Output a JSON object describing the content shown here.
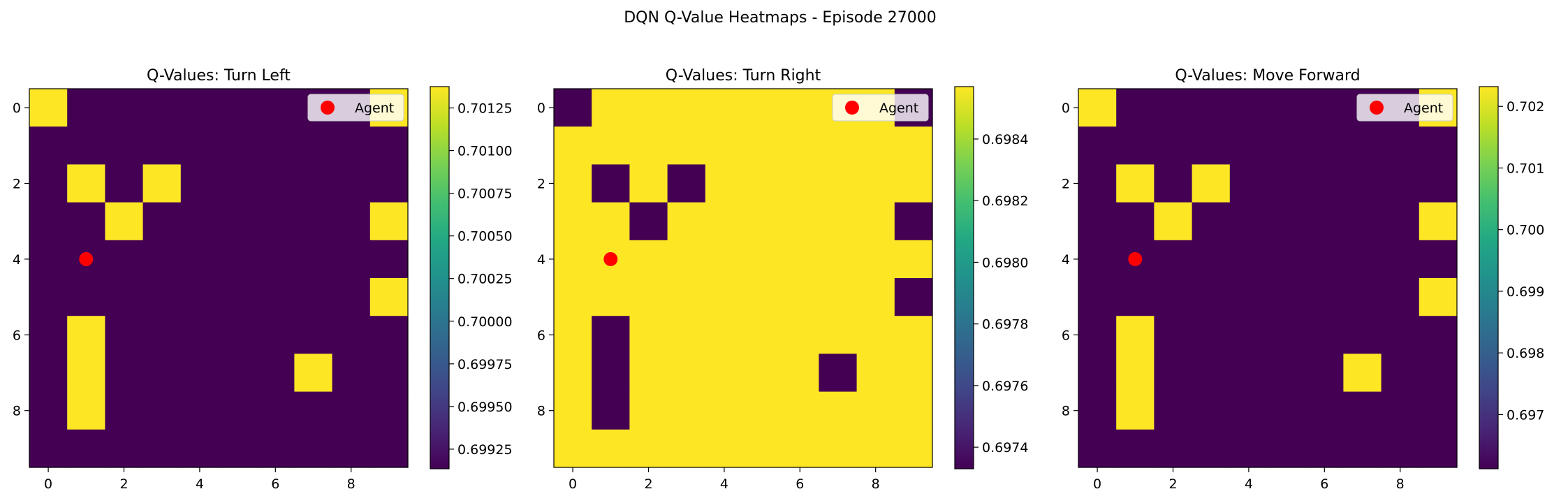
{
  "title": "DQN Q-Value Heatmaps - Episode 27000",
  "colors": {
    "low": "#440154",
    "high": "#fde725",
    "agent": "#ff0000",
    "colormap": "viridis"
  },
  "chart_data": [
    {
      "type": "heatmap",
      "title": "Q-Values: Turn Left",
      "xticks": [
        0,
        2,
        4,
        6,
        8
      ],
      "yticks": [
        0,
        2,
        4,
        6,
        8
      ],
      "colorbar": {
        "vmin": 0.699135,
        "vmax": 0.701375,
        "ticks": [
          "0.69925",
          "0.69950",
          "0.69975",
          "0.70000",
          "0.70025",
          "0.70050",
          "0.70075",
          "0.70100",
          "0.70125"
        ]
      },
      "legend": {
        "label": "Agent",
        "loc": "upper right"
      },
      "agent": {
        "x": 1,
        "y": 4
      },
      "low_value": 0.69914,
      "high_value": 0.70137,
      "grid": [
        [
          1,
          0,
          0,
          0,
          0,
          0,
          0,
          0,
          0,
          1
        ],
        [
          0,
          0,
          0,
          0,
          0,
          0,
          0,
          0,
          0,
          0
        ],
        [
          0,
          1,
          0,
          1,
          0,
          0,
          0,
          0,
          0,
          0
        ],
        [
          0,
          0,
          1,
          0,
          0,
          0,
          0,
          0,
          0,
          1
        ],
        [
          0,
          0,
          0,
          0,
          0,
          0,
          0,
          0,
          0,
          0
        ],
        [
          0,
          0,
          0,
          0,
          0,
          0,
          0,
          0,
          0,
          1
        ],
        [
          0,
          1,
          0,
          0,
          0,
          0,
          0,
          0,
          0,
          0
        ],
        [
          0,
          1,
          0,
          0,
          0,
          0,
          0,
          1,
          0,
          0
        ],
        [
          0,
          1,
          0,
          0,
          0,
          0,
          0,
          0,
          0,
          0
        ],
        [
          0,
          0,
          0,
          0,
          0,
          0,
          0,
          0,
          0,
          0
        ]
      ]
    },
    {
      "type": "heatmap",
      "title": "Q-Values: Turn Right",
      "xticks": [
        0,
        2,
        4,
        6,
        8
      ],
      "yticks": [
        0,
        2,
        4,
        6,
        8
      ],
      "colorbar": {
        "vmin": 0.69733,
        "vmax": 0.69857,
        "ticks": [
          "0.6974",
          "0.6976",
          "0.6978",
          "0.6980",
          "0.6982",
          "0.6984"
        ]
      },
      "legend": {
        "label": "Agent",
        "loc": "upper right"
      },
      "agent": {
        "x": 1,
        "y": 4
      },
      "low_value": 0.69733,
      "high_value": 0.69857,
      "grid": [
        [
          0,
          1,
          1,
          1,
          1,
          1,
          1,
          1,
          1,
          0
        ],
        [
          1,
          1,
          1,
          1,
          1,
          1,
          1,
          1,
          1,
          1
        ],
        [
          1,
          0,
          1,
          0,
          1,
          1,
          1,
          1,
          1,
          1
        ],
        [
          1,
          1,
          0,
          1,
          1,
          1,
          1,
          1,
          1,
          0
        ],
        [
          1,
          1,
          1,
          1,
          1,
          1,
          1,
          1,
          1,
          1
        ],
        [
          1,
          1,
          1,
          1,
          1,
          1,
          1,
          1,
          1,
          0
        ],
        [
          1,
          0,
          1,
          1,
          1,
          1,
          1,
          1,
          1,
          1
        ],
        [
          1,
          0,
          1,
          1,
          1,
          1,
          1,
          0,
          1,
          1
        ],
        [
          1,
          0,
          1,
          1,
          1,
          1,
          1,
          1,
          1,
          1
        ],
        [
          1,
          1,
          1,
          1,
          1,
          1,
          1,
          1,
          1,
          1
        ]
      ]
    },
    {
      "type": "heatmap",
      "title": "Q-Values: Move Forward",
      "xticks": [
        0,
        2,
        4,
        6,
        8
      ],
      "yticks": [
        0,
        2,
        4,
        6,
        8
      ],
      "colorbar": {
        "vmin": 0.69612,
        "vmax": 0.70232,
        "ticks": [
          "0.697",
          "0.698",
          "0.699",
          "0.700",
          "0.701",
          "0.702"
        ]
      },
      "legend": {
        "label": "Agent",
        "loc": "upper right"
      },
      "agent": {
        "x": 1,
        "y": 4
      },
      "low_value": 0.69612,
      "high_value": 0.70232,
      "grid": [
        [
          1,
          0,
          0,
          0,
          0,
          0,
          0,
          0,
          0,
          1
        ],
        [
          0,
          0,
          0,
          0,
          0,
          0,
          0,
          0,
          0,
          0
        ],
        [
          0,
          1,
          0,
          1,
          0,
          0,
          0,
          0,
          0,
          0
        ],
        [
          0,
          0,
          1,
          0,
          0,
          0,
          0,
          0,
          0,
          1
        ],
        [
          0,
          0,
          0,
          0,
          0,
          0,
          0,
          0,
          0,
          0
        ],
        [
          0,
          0,
          0,
          0,
          0,
          0,
          0,
          0,
          0,
          1
        ],
        [
          0,
          1,
          0,
          0,
          0,
          0,
          0,
          0,
          0,
          0
        ],
        [
          0,
          1,
          0,
          0,
          0,
          0,
          0,
          1,
          0,
          0
        ],
        [
          0,
          1,
          0,
          0,
          0,
          0,
          0,
          0,
          0,
          0
        ],
        [
          0,
          0,
          0,
          0,
          0,
          0,
          0,
          0,
          0,
          0
        ]
      ]
    }
  ]
}
